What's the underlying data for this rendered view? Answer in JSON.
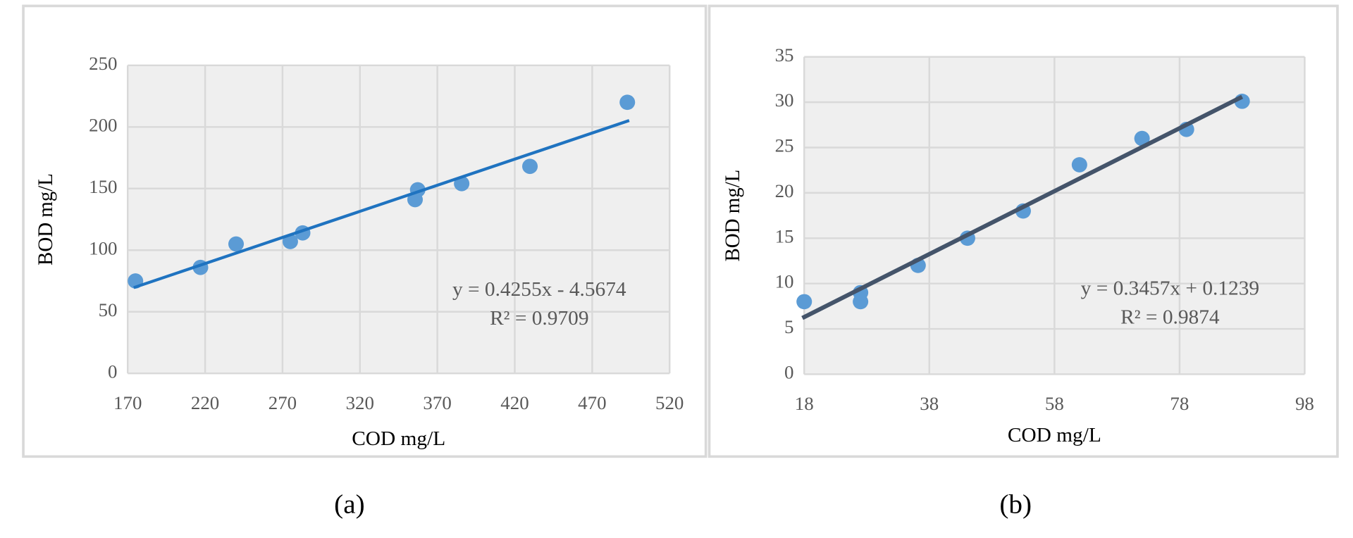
{
  "chart_data": [
    {
      "type": "scatter",
      "caption": "(a)",
      "xlabel": "COD mg/L",
      "ylabel": "BOD mg/L",
      "x": [
        175,
        217,
        240,
        275,
        283,
        355.6,
        357.3,
        385.7,
        429.8,
        492.7
      ],
      "values": [
        75,
        86,
        105,
        107,
        114,
        141,
        149,
        154,
        168,
        220
      ],
      "color": "#5b9bd5",
      "trendline": {
        "x": [
          173.9,
          493.9
        ],
        "y": [
          69.6,
          205.2
        ],
        "color": "#1f73c0"
      },
      "annotations": [
        "y = 0.4255x - 4.5674",
        "R² = 0.9709"
      ],
      "xlim": [
        170,
        520
      ],
      "xticks": [
        170,
        220,
        270,
        320,
        370,
        420,
        470,
        520
      ],
      "ylim": [
        0,
        250
      ],
      "yticks": [
        0,
        50,
        100,
        150,
        200,
        250
      ],
      "grid": true
    },
    {
      "type": "scatter",
      "caption": "(b)",
      "xlabel": "COD mg/L",
      "ylabel": "BOD mg/L",
      "x": [
        18,
        27,
        27,
        36.2,
        44.1,
        53,
        62,
        72,
        79.1,
        88
      ],
      "values": [
        8,
        8,
        9,
        12,
        15,
        18,
        23.1,
        26,
        27,
        30.1
      ],
      "color": "#5b9bd5",
      "trendline": {
        "x": [
          17.7,
          88
        ],
        "y": [
          6.2,
          30.6
        ],
        "color": "#44546a"
      },
      "annotations": [
        "y = 0.3457x + 0.1239",
        "R² = 0.9874"
      ],
      "xlim": [
        18,
        98
      ],
      "xticks": [
        18,
        38,
        58,
        78,
        98
      ],
      "ylim": [
        0,
        35
      ],
      "yticks": [
        0,
        5,
        10,
        15,
        20,
        25,
        30,
        35
      ],
      "grid": true
    }
  ]
}
